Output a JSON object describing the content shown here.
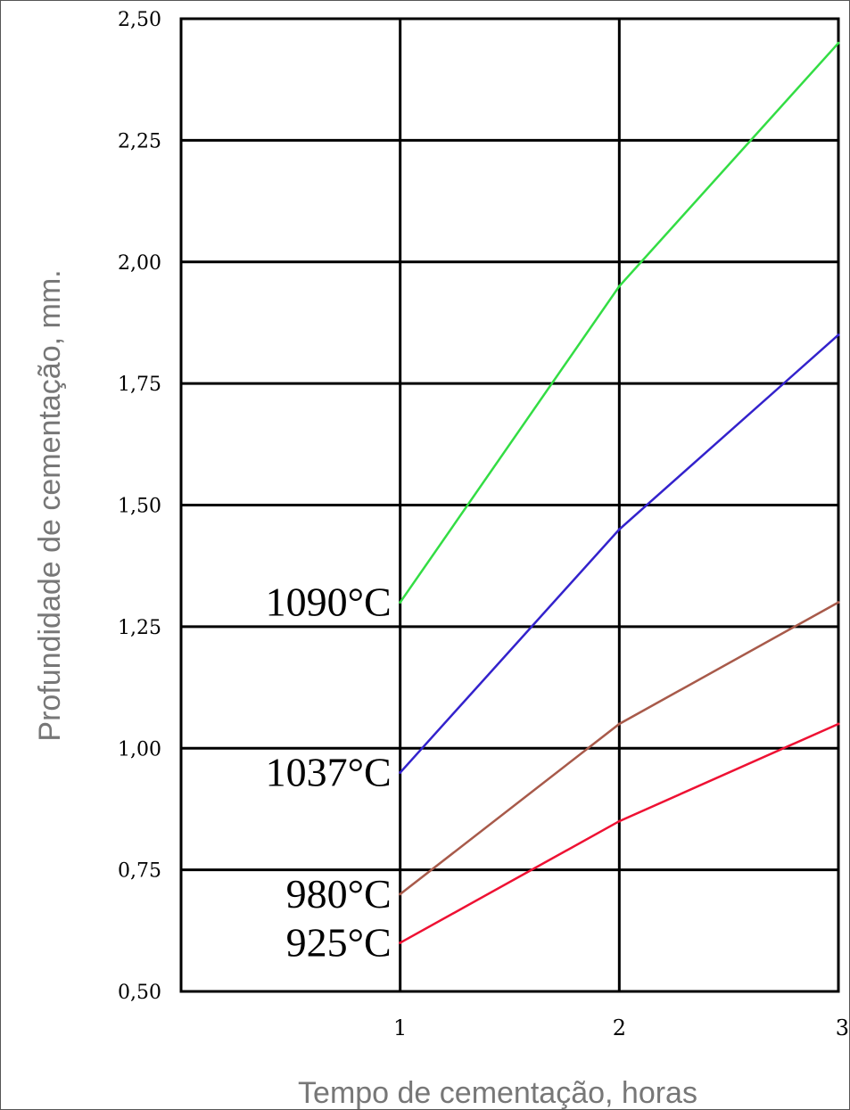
{
  "chart_data": {
    "type": "line",
    "title": "",
    "xlabel": "Tempo de cementação, horas",
    "ylabel": "Profundidade de cementação, mm.",
    "xlim": [
      0,
      3
    ],
    "ylim": [
      0.5,
      2.5
    ],
    "x_ticks": [
      {
        "value": 1,
        "label": "1"
      },
      {
        "value": 2,
        "label": "2"
      },
      {
        "value": 3,
        "label": "3"
      }
    ],
    "y_ticks": [
      {
        "value": 0.5,
        "label": "0,50"
      },
      {
        "value": 0.75,
        "label": "0,75"
      },
      {
        "value": 1.0,
        "label": "1,00"
      },
      {
        "value": 1.25,
        "label": "1,25"
      },
      {
        "value": 1.5,
        "label": "1,50"
      },
      {
        "value": 1.75,
        "label": "1,75"
      },
      {
        "value": 2.0,
        "label": "2,00"
      },
      {
        "value": 2.25,
        "label": "2,25"
      },
      {
        "value": 2.5,
        "label": "2,50"
      }
    ],
    "grid": true,
    "legend": "none",
    "series": [
      {
        "name": "1090°C",
        "color": "#33dd44",
        "points": [
          {
            "x": 1,
            "y": 1.3
          },
          {
            "x": 2,
            "y": 1.95
          },
          {
            "x": 3,
            "y": 2.45
          }
        ]
      },
      {
        "name": "1037°C",
        "color": "#3322cc",
        "points": [
          {
            "x": 1,
            "y": 0.95
          },
          {
            "x": 2,
            "y": 1.45
          },
          {
            "x": 3,
            "y": 1.85
          }
        ]
      },
      {
        "name": "980°C",
        "color": "#a85a4a",
        "points": [
          {
            "x": 1,
            "y": 0.7
          },
          {
            "x": 2,
            "y": 1.05
          },
          {
            "x": 3,
            "y": 1.3
          }
        ]
      },
      {
        "name": "925°C",
        "color": "#ee1133",
        "points": [
          {
            "x": 1,
            "y": 0.6
          },
          {
            "x": 2,
            "y": 0.85
          },
          {
            "x": 3,
            "y": 1.05
          }
        ]
      }
    ]
  }
}
